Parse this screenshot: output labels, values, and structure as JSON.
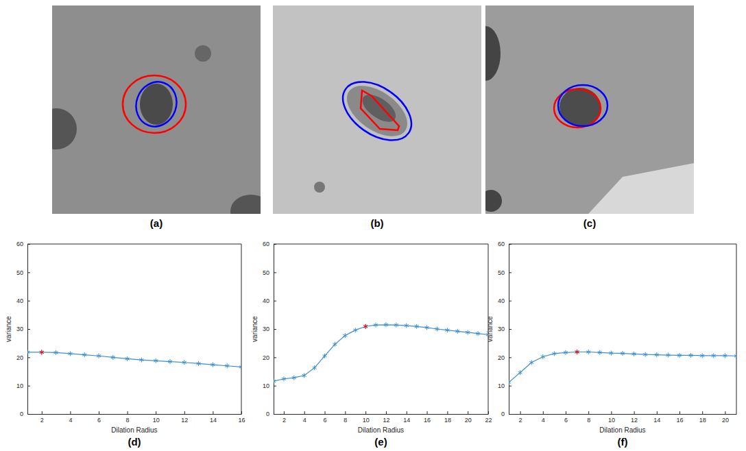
{
  "images": [
    {
      "panel": "(a)"
    },
    {
      "panel": "(b)"
    },
    {
      "panel": "(c)"
    }
  ],
  "chart_data": [
    {
      "type": "line",
      "panel": "(d)",
      "x_label": "Dilation Radius",
      "y_label": "variance",
      "x": [
        1,
        2,
        3,
        4,
        5,
        6,
        7,
        8,
        9,
        10,
        11,
        12,
        13,
        14,
        15,
        16
      ],
      "series": [
        {
          "color": "#3a8fcf",
          "marker": "asterisk",
          "line_style": "solid",
          "values": [
            21.8,
            21.8,
            21.7,
            21.3,
            20.9,
            20.5,
            20.0,
            19.5,
            19.1,
            18.8,
            18.5,
            18.2,
            17.8,
            17.4,
            17.0,
            16.6
          ]
        },
        {
          "type": "scatter",
          "color": "#ff0000",
          "marker": "asterisk",
          "values": [
            null,
            21.8,
            null,
            null,
            null,
            null,
            null,
            null,
            null,
            null,
            null,
            null,
            null,
            null,
            null,
            null
          ]
        }
      ],
      "xlim": [
        1,
        16
      ],
      "xticks": [
        2,
        4,
        6,
        8,
        10,
        12,
        14,
        16
      ],
      "ylim": [
        0,
        60
      ],
      "yticks": [
        0,
        10,
        20,
        30,
        40,
        50,
        60
      ],
      "grid": false
    },
    {
      "type": "line",
      "panel": "(e)",
      "x_label": "Dilation Radius",
      "y_label": "variance",
      "x": [
        1,
        2,
        3,
        4,
        5,
        6,
        7,
        8,
        9,
        10,
        11,
        12,
        13,
        14,
        15,
        16,
        17,
        18,
        19,
        20,
        21,
        22
      ],
      "series": [
        {
          "color": "#3a8fcf",
          "marker": "asterisk",
          "line_style": "solid",
          "values": [
            11.6,
            12.4,
            12.8,
            13.6,
            16.3,
            20.5,
            24.6,
            27.7,
            29.6,
            30.9,
            31.4,
            31.5,
            31.4,
            31.2,
            30.9,
            30.5,
            30.0,
            29.6,
            29.2,
            28.8,
            28.4,
            28.0
          ]
        },
        {
          "type": "scatter",
          "color": "#ff0000",
          "marker": "asterisk",
          "values": [
            null,
            null,
            null,
            null,
            null,
            null,
            null,
            null,
            null,
            30.9,
            null,
            null,
            null,
            null,
            null,
            null,
            null,
            null,
            null,
            null,
            null,
            null
          ]
        }
      ],
      "xlim": [
        1,
        22
      ],
      "xticks": [
        2,
        4,
        6,
        8,
        10,
        12,
        14,
        16,
        18,
        20,
        22
      ],
      "ylim": [
        0,
        60
      ],
      "yticks": [
        0,
        10,
        20,
        30,
        40,
        50,
        60
      ],
      "grid": false
    },
    {
      "type": "line",
      "panel": "(f)",
      "x_label": "Dilation Radius",
      "y_label": "variance",
      "x": [
        1,
        2,
        3,
        4,
        5,
        6,
        7,
        8,
        9,
        10,
        11,
        12,
        13,
        14,
        15,
        16,
        17,
        18,
        19,
        20,
        21
      ],
      "series": [
        {
          "color": "#3a8fcf",
          "marker": "asterisk",
          "line_style": "solid",
          "values": [
            11.2,
            14.6,
            18.2,
            20.2,
            21.3,
            21.7,
            21.9,
            21.9,
            21.7,
            21.5,
            21.4,
            21.2,
            21.0,
            20.9,
            20.8,
            20.7,
            20.7,
            20.6,
            20.6,
            20.6,
            20.5
          ]
        },
        {
          "type": "scatter",
          "color": "#ff0000",
          "marker": "asterisk",
          "values": [
            null,
            null,
            null,
            null,
            null,
            null,
            21.9,
            null,
            null,
            null,
            null,
            null,
            null,
            null,
            null,
            null,
            null,
            null,
            null,
            null,
            null
          ]
        }
      ],
      "xlim": [
        1,
        21
      ],
      "xticks": [
        2,
        4,
        6,
        8,
        10,
        12,
        14,
        16,
        18,
        20
      ],
      "ylim": [
        0,
        60
      ],
      "yticks": [
        0,
        10,
        20,
        30,
        40,
        50,
        60
      ],
      "grid": false
    }
  ]
}
